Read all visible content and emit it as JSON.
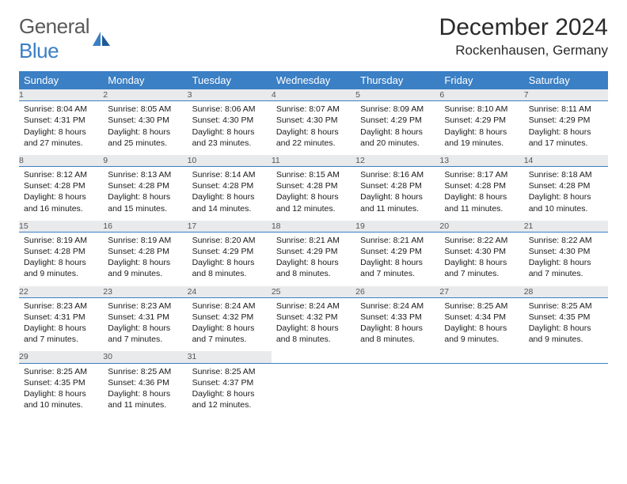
{
  "logo": {
    "word1": "General",
    "word2": "Blue"
  },
  "title": "December 2024",
  "location": "Rockenhausen, Germany",
  "colors": {
    "header_bg": "#3b7fc4",
    "header_text": "#ffffff",
    "daynum_bg": "#e8eaec",
    "daynum_text": "#555555",
    "rule": "#3b7fc4",
    "body_text": "#1a1a1a",
    "logo_gray": "#5a5a5a",
    "logo_blue": "#3b7fc4"
  },
  "weekdays": [
    "Sunday",
    "Monday",
    "Tuesday",
    "Wednesday",
    "Thursday",
    "Friday",
    "Saturday"
  ],
  "weeks": [
    [
      {
        "n": "1",
        "sr": "8:04 AM",
        "ss": "4:31 PM",
        "dl": "8 hours and 27 minutes."
      },
      {
        "n": "2",
        "sr": "8:05 AM",
        "ss": "4:30 PM",
        "dl": "8 hours and 25 minutes."
      },
      {
        "n": "3",
        "sr": "8:06 AM",
        "ss": "4:30 PM",
        "dl": "8 hours and 23 minutes."
      },
      {
        "n": "4",
        "sr": "8:07 AM",
        "ss": "4:30 PM",
        "dl": "8 hours and 22 minutes."
      },
      {
        "n": "5",
        "sr": "8:09 AM",
        "ss": "4:29 PM",
        "dl": "8 hours and 20 minutes."
      },
      {
        "n": "6",
        "sr": "8:10 AM",
        "ss": "4:29 PM",
        "dl": "8 hours and 19 minutes."
      },
      {
        "n": "7",
        "sr": "8:11 AM",
        "ss": "4:29 PM",
        "dl": "8 hours and 17 minutes."
      }
    ],
    [
      {
        "n": "8",
        "sr": "8:12 AM",
        "ss": "4:28 PM",
        "dl": "8 hours and 16 minutes."
      },
      {
        "n": "9",
        "sr": "8:13 AM",
        "ss": "4:28 PM",
        "dl": "8 hours and 15 minutes."
      },
      {
        "n": "10",
        "sr": "8:14 AM",
        "ss": "4:28 PM",
        "dl": "8 hours and 14 minutes."
      },
      {
        "n": "11",
        "sr": "8:15 AM",
        "ss": "4:28 PM",
        "dl": "8 hours and 12 minutes."
      },
      {
        "n": "12",
        "sr": "8:16 AM",
        "ss": "4:28 PM",
        "dl": "8 hours and 11 minutes."
      },
      {
        "n": "13",
        "sr": "8:17 AM",
        "ss": "4:28 PM",
        "dl": "8 hours and 11 minutes."
      },
      {
        "n": "14",
        "sr": "8:18 AM",
        "ss": "4:28 PM",
        "dl": "8 hours and 10 minutes."
      }
    ],
    [
      {
        "n": "15",
        "sr": "8:19 AM",
        "ss": "4:28 PM",
        "dl": "8 hours and 9 minutes."
      },
      {
        "n": "16",
        "sr": "8:19 AM",
        "ss": "4:28 PM",
        "dl": "8 hours and 9 minutes."
      },
      {
        "n": "17",
        "sr": "8:20 AM",
        "ss": "4:29 PM",
        "dl": "8 hours and 8 minutes."
      },
      {
        "n": "18",
        "sr": "8:21 AM",
        "ss": "4:29 PM",
        "dl": "8 hours and 8 minutes."
      },
      {
        "n": "19",
        "sr": "8:21 AM",
        "ss": "4:29 PM",
        "dl": "8 hours and 7 minutes."
      },
      {
        "n": "20",
        "sr": "8:22 AM",
        "ss": "4:30 PM",
        "dl": "8 hours and 7 minutes."
      },
      {
        "n": "21",
        "sr": "8:22 AM",
        "ss": "4:30 PM",
        "dl": "8 hours and 7 minutes."
      }
    ],
    [
      {
        "n": "22",
        "sr": "8:23 AM",
        "ss": "4:31 PM",
        "dl": "8 hours and 7 minutes."
      },
      {
        "n": "23",
        "sr": "8:23 AM",
        "ss": "4:31 PM",
        "dl": "8 hours and 7 minutes."
      },
      {
        "n": "24",
        "sr": "8:24 AM",
        "ss": "4:32 PM",
        "dl": "8 hours and 7 minutes."
      },
      {
        "n": "25",
        "sr": "8:24 AM",
        "ss": "4:32 PM",
        "dl": "8 hours and 8 minutes."
      },
      {
        "n": "26",
        "sr": "8:24 AM",
        "ss": "4:33 PM",
        "dl": "8 hours and 8 minutes."
      },
      {
        "n": "27",
        "sr": "8:25 AM",
        "ss": "4:34 PM",
        "dl": "8 hours and 9 minutes."
      },
      {
        "n": "28",
        "sr": "8:25 AM",
        "ss": "4:35 PM",
        "dl": "8 hours and 9 minutes."
      }
    ],
    [
      {
        "n": "29",
        "sr": "8:25 AM",
        "ss": "4:35 PM",
        "dl": "8 hours and 10 minutes."
      },
      {
        "n": "30",
        "sr": "8:25 AM",
        "ss": "4:36 PM",
        "dl": "8 hours and 11 minutes."
      },
      {
        "n": "31",
        "sr": "8:25 AM",
        "ss": "4:37 PM",
        "dl": "8 hours and 12 minutes."
      },
      null,
      null,
      null,
      null
    ]
  ],
  "labels": {
    "sunrise": "Sunrise:",
    "sunset": "Sunset:",
    "daylight": "Daylight:"
  }
}
